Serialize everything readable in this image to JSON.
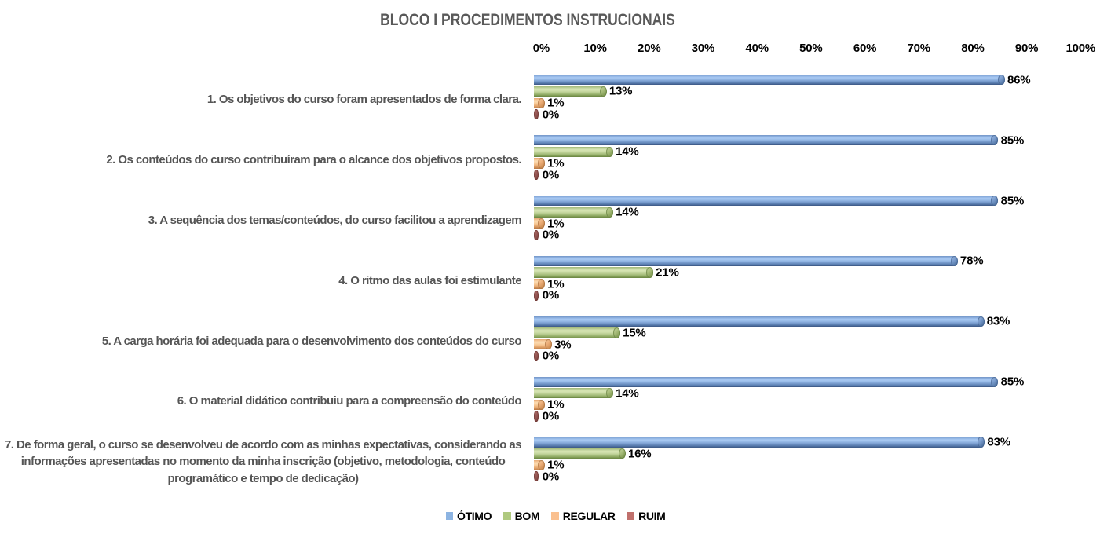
{
  "chart_data": {
    "type": "bar",
    "orientation": "horizontal",
    "title": "BLOCO I PROCEDIMENTOS INSTRUCIONAIS",
    "xlabel": "",
    "ylabel": "",
    "x_axis": {
      "position": "top",
      "min": 0,
      "max": 100,
      "tick_labels": [
        "0%",
        "10%",
        "20%",
        "30%",
        "40%",
        "50%",
        "60%",
        "70%",
        "80%",
        "90%",
        "100%"
      ],
      "grid": false
    },
    "categories": [
      "1. Os objetivos do curso foram apresentados de forma clara.",
      "2. Os conteúdos do curso contribuíram para o alcance dos objetivos propostos.",
      "3. A sequência dos temas/conteúdos, do curso facilitou a aprendizagem",
      "4. O ritmo das aulas foi estimulante",
      "5. A carga horária foi adequada para o desenvolvimento dos conteúdos do curso",
      "6. O material didático contribuiu para a compreensão do conteúdo",
      "7. De forma geral, o curso se desenvolveu de acordo com as minhas expectativas, considerando as\ninformações apresentadas no momento da minha inscrição (objetivo, metodologia, conteúdo\nprogramático e tempo de dedicação)"
    ],
    "series": [
      {
        "name": "ÓTIMO",
        "color": "#8DB4E2",
        "values": [
          86,
          85,
          85,
          78,
          83,
          85,
          83
        ],
        "labels": [
          "86%",
          "85%",
          "85%",
          "78%",
          "83%",
          "85%",
          "83%"
        ],
        "values_precise": [
          86.3,
          85.1,
          85.1,
          77.6,
          82.5,
          85.1,
          82.6
        ]
      },
      {
        "name": "BOM",
        "color": "#AFC97F",
        "values": [
          13,
          14,
          14,
          21,
          15,
          14,
          16
        ],
        "labels": [
          "13%",
          "14%",
          "14%",
          "21%",
          "15%",
          "14%",
          "16%"
        ],
        "values_precise": [
          12.8,
          14.0,
          14.0,
          21.4,
          15.3,
          14.0,
          16.3
        ]
      },
      {
        "name": "REGULAR",
        "color": "#FAC08F",
        "values": [
          1,
          1,
          1,
          1,
          3,
          1,
          1
        ],
        "labels": [
          "1%",
          "1%",
          "1%",
          "1%",
          "3%",
          "1%",
          "1%"
        ],
        "values_precise": [
          1.4,
          1.4,
          1.4,
          1.4,
          2.7,
          1.4,
          1.4
        ]
      },
      {
        "name": "RUIM",
        "color": "#C0706C",
        "values": [
          0,
          0,
          0,
          0,
          0,
          0,
          0
        ],
        "labels": [
          "0%",
          "0%",
          "0%",
          "0%",
          "0%",
          "0%",
          "0%"
        ],
        "values_precise": [
          0,
          0,
          0,
          0,
          0,
          0,
          0
        ]
      }
    ],
    "legend": {
      "position": "bottom",
      "items": [
        "ÓTIMO",
        "BOM",
        "REGULAR",
        "RUIM"
      ]
    },
    "colors": {
      "title_text": "#595959",
      "category_text": "#555555",
      "label_text": "#000000",
      "axis_line": "#c6c6c6",
      "background": "#ffffff"
    }
  }
}
